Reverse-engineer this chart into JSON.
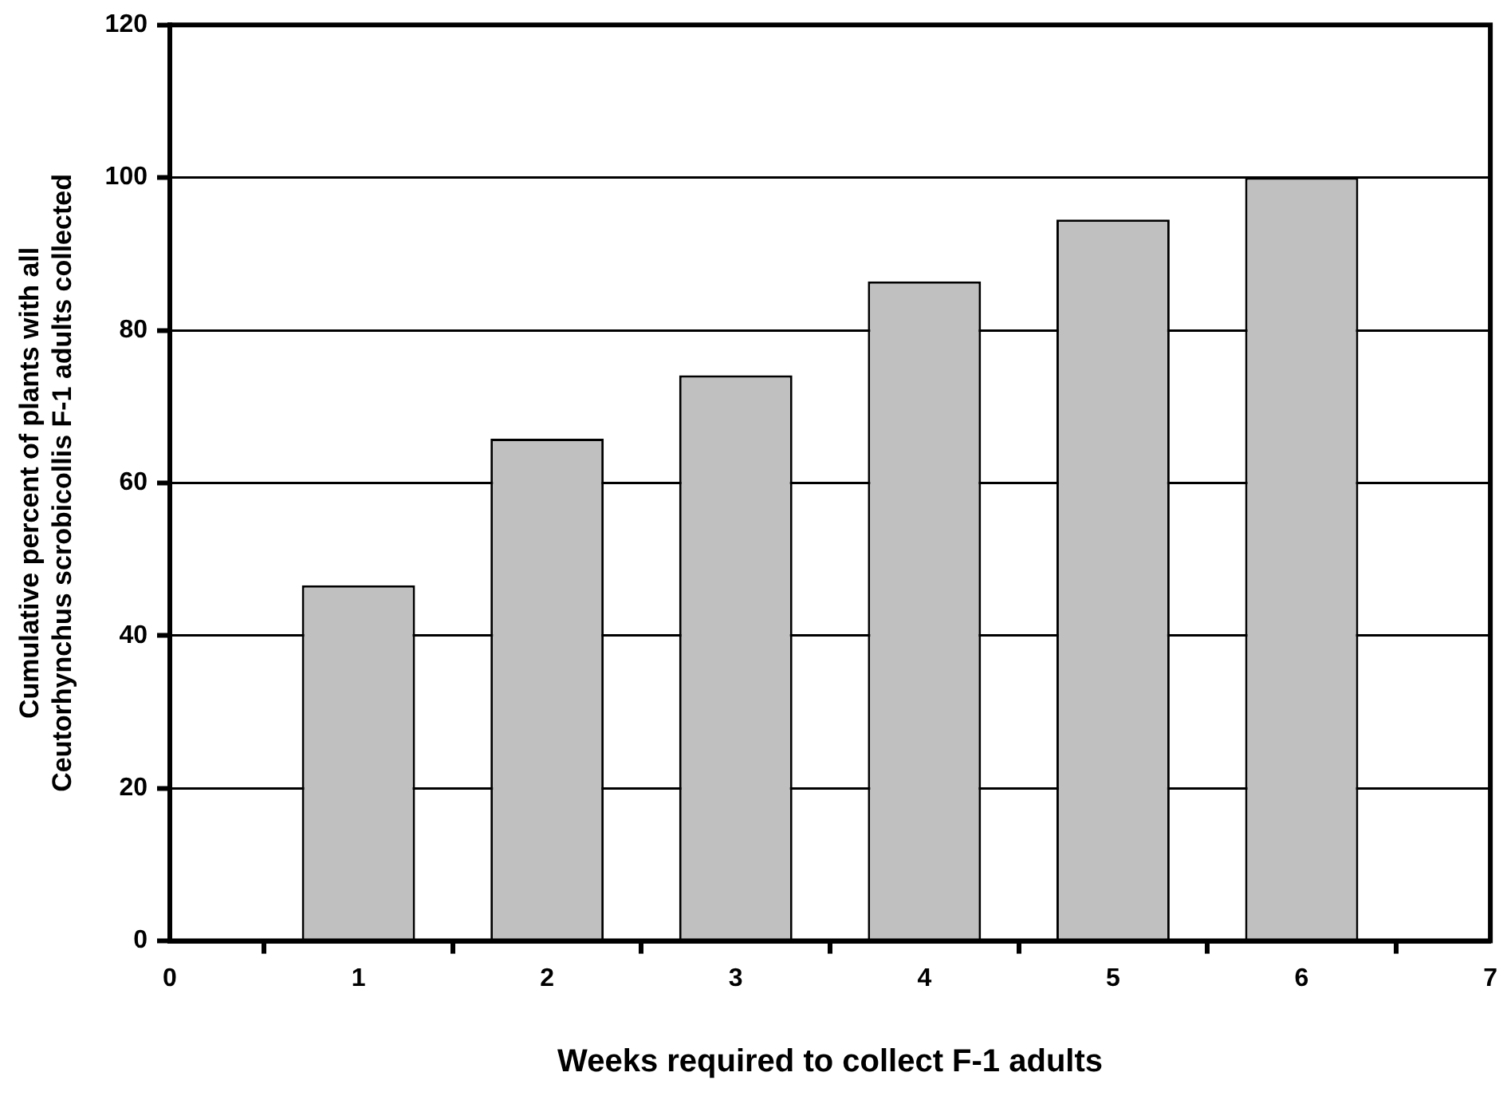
{
  "chart_data": {
    "type": "bar",
    "xlabel": "Weeks required to collect F-1 adults",
    "ylabel": "Cumulative percent of plants with all\nCeutorhynchus scrobicollis F-1 adults collected",
    "x": [
      1,
      2,
      3,
      4,
      5,
      6
    ],
    "values": [
      46.6,
      65.8,
      74.1,
      86.4,
      94.5,
      100
    ],
    "color": "#c0c0c0",
    "xlim": [
      0,
      7
    ],
    "xticks": [
      0,
      1,
      2,
      3,
      4,
      5,
      6,
      7
    ],
    "ylim": [
      0,
      120
    ],
    "yticks": [
      0,
      20,
      40,
      60,
      80,
      100,
      120
    ],
    "grid": "y",
    "legend": false
  }
}
